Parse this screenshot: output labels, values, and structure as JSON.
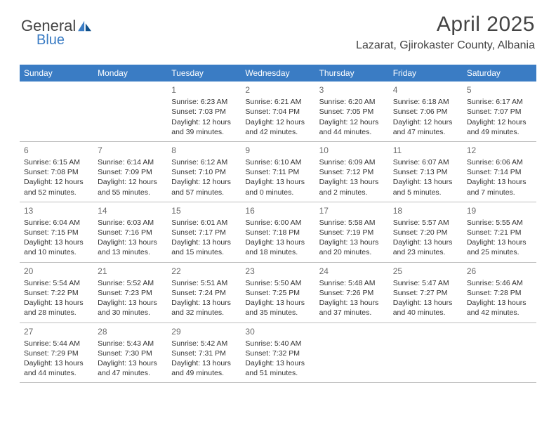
{
  "brand": {
    "text1": "General",
    "text2": "Blue"
  },
  "header": {
    "title": "April 2025",
    "location": "Lazarat, Gjirokaster County, Albania"
  },
  "colors": {
    "accent": "#3a7cc4",
    "text": "#444444",
    "body_text": "#333333",
    "daynum": "#6a6a6a",
    "border": "#bfbfbf"
  },
  "weekdays": [
    "Sunday",
    "Monday",
    "Tuesday",
    "Wednesday",
    "Thursday",
    "Friday",
    "Saturday"
  ],
  "weeks": [
    [
      null,
      null,
      {
        "n": "1",
        "sr": "6:23 AM",
        "ss": "7:03 PM",
        "dl": "12 hours and 39 minutes."
      },
      {
        "n": "2",
        "sr": "6:21 AM",
        "ss": "7:04 PM",
        "dl": "12 hours and 42 minutes."
      },
      {
        "n": "3",
        "sr": "6:20 AM",
        "ss": "7:05 PM",
        "dl": "12 hours and 44 minutes."
      },
      {
        "n": "4",
        "sr": "6:18 AM",
        "ss": "7:06 PM",
        "dl": "12 hours and 47 minutes."
      },
      {
        "n": "5",
        "sr": "6:17 AM",
        "ss": "7:07 PM",
        "dl": "12 hours and 49 minutes."
      }
    ],
    [
      {
        "n": "6",
        "sr": "6:15 AM",
        "ss": "7:08 PM",
        "dl": "12 hours and 52 minutes."
      },
      {
        "n": "7",
        "sr": "6:14 AM",
        "ss": "7:09 PM",
        "dl": "12 hours and 55 minutes."
      },
      {
        "n": "8",
        "sr": "6:12 AM",
        "ss": "7:10 PM",
        "dl": "12 hours and 57 minutes."
      },
      {
        "n": "9",
        "sr": "6:10 AM",
        "ss": "7:11 PM",
        "dl": "13 hours and 0 minutes."
      },
      {
        "n": "10",
        "sr": "6:09 AM",
        "ss": "7:12 PM",
        "dl": "13 hours and 2 minutes."
      },
      {
        "n": "11",
        "sr": "6:07 AM",
        "ss": "7:13 PM",
        "dl": "13 hours and 5 minutes."
      },
      {
        "n": "12",
        "sr": "6:06 AM",
        "ss": "7:14 PM",
        "dl": "13 hours and 7 minutes."
      }
    ],
    [
      {
        "n": "13",
        "sr": "6:04 AM",
        "ss": "7:15 PM",
        "dl": "13 hours and 10 minutes."
      },
      {
        "n": "14",
        "sr": "6:03 AM",
        "ss": "7:16 PM",
        "dl": "13 hours and 13 minutes."
      },
      {
        "n": "15",
        "sr": "6:01 AM",
        "ss": "7:17 PM",
        "dl": "13 hours and 15 minutes."
      },
      {
        "n": "16",
        "sr": "6:00 AM",
        "ss": "7:18 PM",
        "dl": "13 hours and 18 minutes."
      },
      {
        "n": "17",
        "sr": "5:58 AM",
        "ss": "7:19 PM",
        "dl": "13 hours and 20 minutes."
      },
      {
        "n": "18",
        "sr": "5:57 AM",
        "ss": "7:20 PM",
        "dl": "13 hours and 23 minutes."
      },
      {
        "n": "19",
        "sr": "5:55 AM",
        "ss": "7:21 PM",
        "dl": "13 hours and 25 minutes."
      }
    ],
    [
      {
        "n": "20",
        "sr": "5:54 AM",
        "ss": "7:22 PM",
        "dl": "13 hours and 28 minutes."
      },
      {
        "n": "21",
        "sr": "5:52 AM",
        "ss": "7:23 PM",
        "dl": "13 hours and 30 minutes."
      },
      {
        "n": "22",
        "sr": "5:51 AM",
        "ss": "7:24 PM",
        "dl": "13 hours and 32 minutes."
      },
      {
        "n": "23",
        "sr": "5:50 AM",
        "ss": "7:25 PM",
        "dl": "13 hours and 35 minutes."
      },
      {
        "n": "24",
        "sr": "5:48 AM",
        "ss": "7:26 PM",
        "dl": "13 hours and 37 minutes."
      },
      {
        "n": "25",
        "sr": "5:47 AM",
        "ss": "7:27 PM",
        "dl": "13 hours and 40 minutes."
      },
      {
        "n": "26",
        "sr": "5:46 AM",
        "ss": "7:28 PM",
        "dl": "13 hours and 42 minutes."
      }
    ],
    [
      {
        "n": "27",
        "sr": "5:44 AM",
        "ss": "7:29 PM",
        "dl": "13 hours and 44 minutes."
      },
      {
        "n": "28",
        "sr": "5:43 AM",
        "ss": "7:30 PM",
        "dl": "13 hours and 47 minutes."
      },
      {
        "n": "29",
        "sr": "5:42 AM",
        "ss": "7:31 PM",
        "dl": "13 hours and 49 minutes."
      },
      {
        "n": "30",
        "sr": "5:40 AM",
        "ss": "7:32 PM",
        "dl": "13 hours and 51 minutes."
      },
      null,
      null,
      null
    ]
  ],
  "labels": {
    "sunrise": "Sunrise: ",
    "sunset": "Sunset: ",
    "daylight": "Daylight: "
  }
}
